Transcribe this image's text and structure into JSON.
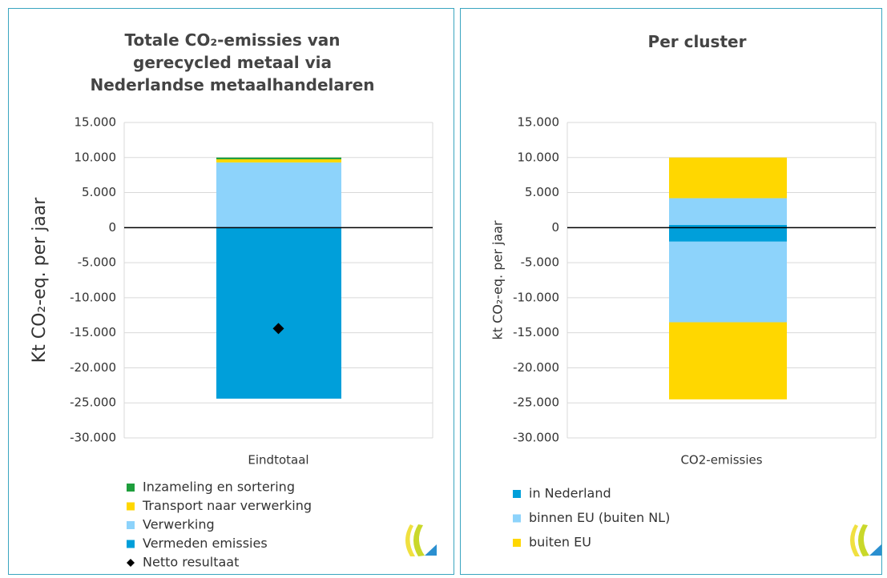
{
  "chart_data": [
    {
      "type": "bar",
      "stacked": true,
      "title": "Totale CO₂-emissies van gerecycled metaal via Nederlandse metaalhandelaren",
      "ylabel": "Kt CO₂-eq. per jaar",
      "categories": [
        "Eindtotaal"
      ],
      "legend_reversed": true,
      "grid": true,
      "ylim": [
        -30000,
        15000
      ],
      "yticks": [
        {
          "value": 15000,
          "label": "15.000"
        },
        {
          "value": 10000,
          "label": "10.000"
        },
        {
          "value": 5000,
          "label": "5.000"
        },
        0,
        {
          "value": -5000,
          "label": "-5.000"
        },
        {
          "value": -10000,
          "label": "-10.000"
        },
        {
          "value": -15000,
          "label": "-15.000"
        },
        {
          "value": -20000,
          "label": "-20.000"
        },
        {
          "value": -25000,
          "label": "-25.000"
        },
        {
          "value": -30000,
          "label": "-30.000"
        }
      ],
      "series": [
        {
          "name": "Vermeden emissies",
          "color": "#009fda",
          "values": [
            -24400
          ]
        },
        {
          "name": "Verwerking",
          "color": "#8dd3fb",
          "values": [
            9300
          ]
        },
        {
          "name": "Transport naar verwerking",
          "color": "#ffd700",
          "values": [
            450
          ]
        },
        {
          "name": "Inzameling en sortering",
          "color": "#1e9e3c",
          "values": [
            250
          ]
        }
      ],
      "marker_series": {
        "name": "Netto resultaat",
        "color": "#000000",
        "marker": "diamond",
        "values": [
          -14400
        ]
      }
    },
    {
      "type": "bar",
      "stacked": true,
      "title": "Per cluster",
      "ylabel": "kt CO₂-eq. per jaar",
      "categories": [
        "CO2-emissies"
      ],
      "legend_reversed": false,
      "grid": true,
      "ylim": [
        -30000,
        15000
      ],
      "yticks": [
        {
          "value": 15000,
          "label": "15.000"
        },
        {
          "value": 10000,
          "label": "10.000"
        },
        {
          "value": 5000,
          "label": "5.000"
        },
        0,
        {
          "value": -5000,
          "label": "-5.000"
        },
        {
          "value": -10000,
          "label": "-10.000"
        },
        {
          "value": -15000,
          "label": "-15.000"
        },
        {
          "value": -20000,
          "label": "-20.000"
        },
        {
          "value": -25000,
          "label": "-25.000"
        },
        {
          "value": -30000,
          "label": "-30.000"
        }
      ],
      "series": [
        {
          "name": "in Nederland",
          "color": "#009fda",
          "values": [
            400
          ],
          "negative_values": [
            -2000
          ]
        },
        {
          "name": "binnen EU (buiten NL)",
          "color": "#8dd3fb",
          "values": [
            3800
          ],
          "negative_values": [
            -11500
          ]
        },
        {
          "name": "buiten EU",
          "color": "#ffd700",
          "values": [
            5800
          ],
          "negative_values": [
            -11000
          ]
        }
      ]
    }
  ]
}
